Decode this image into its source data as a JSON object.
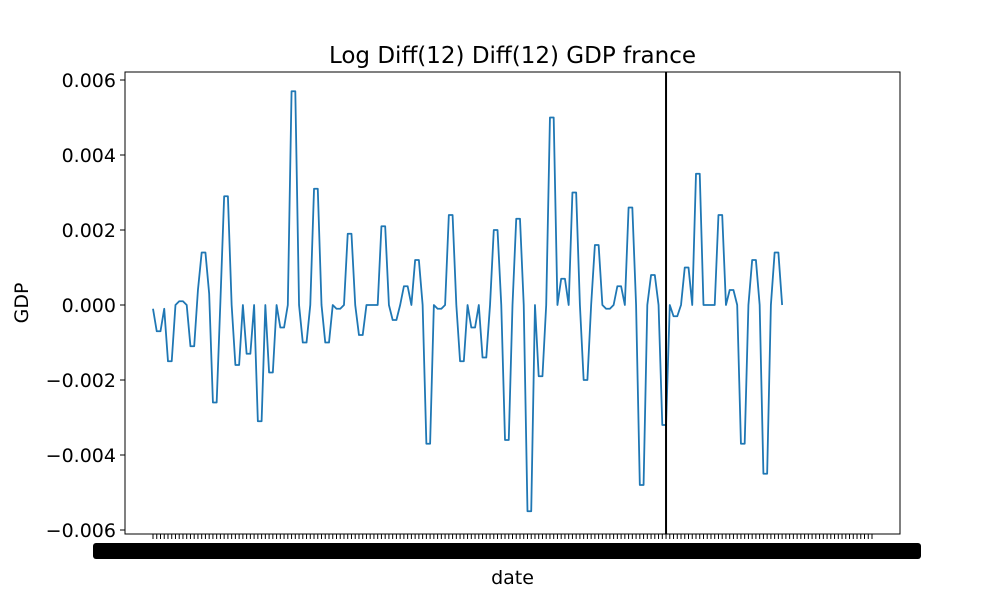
{
  "chart_data": {
    "type": "line",
    "title": "Log Diff(12) Diff(12) GDP france",
    "xlabel": "date",
    "ylabel": "GDP",
    "ylim": [
      -0.006,
      0.006
    ],
    "yticks": [
      {
        "value": -0.006,
        "label": "−0.006"
      },
      {
        "value": -0.004,
        "label": "−0.004"
      },
      {
        "value": -0.002,
        "label": "−0.002"
      },
      {
        "value": 0.0,
        "label": "0.000"
      },
      {
        "value": 0.002,
        "label": "0.002"
      },
      {
        "value": 0.004,
        "label": "0.004"
      },
      {
        "value": 0.006,
        "label": "0.006"
      }
    ],
    "x_index_range": [
      0,
      192
    ],
    "xtick_count": 193,
    "xtick_labels_note": "overlapping date labels rendered as an illegible dark band",
    "vertical_line_at_index": 137,
    "grid": false,
    "series": [
      {
        "color": "#1f77b4",
        "values": [
          -0.0001,
          -0.0007,
          -0.0007,
          -0.0001,
          -0.0015,
          -0.0015,
          0.0,
          0.0001,
          0.0001,
          0.0,
          -0.0011,
          -0.0011,
          0.0004,
          0.0014,
          0.0014,
          0.0003,
          -0.0026,
          -0.0026,
          0.0001,
          0.0029,
          0.0029,
          0.0,
          -0.0016,
          -0.0016,
          0.0,
          -0.0013,
          -0.0013,
          0.0,
          -0.0031,
          -0.0031,
          0.0,
          -0.0018,
          -0.0018,
          0.0,
          -0.0006,
          -0.0006,
          0.0,
          0.0057,
          0.0057,
          0.0,
          -0.001,
          -0.001,
          0.0,
          0.0031,
          0.0031,
          0.0,
          -0.001,
          -0.001,
          0.0,
          -0.0001,
          -0.0001,
          0.0,
          0.0019,
          0.0019,
          0.0,
          -0.0008,
          -0.0008,
          0.0,
          0.0,
          0.0,
          0.0,
          0.0021,
          0.0021,
          0.0,
          -0.0004,
          -0.0004,
          0.0,
          0.0005,
          0.0005,
          0.0,
          0.0012,
          0.0012,
          0.0,
          -0.0037,
          -0.0037,
          0.0,
          -0.0001,
          -0.0001,
          0.0,
          0.0024,
          0.0024,
          0.0,
          -0.0015,
          -0.0015,
          0.0,
          -0.0006,
          -0.0006,
          0.0,
          -0.0014,
          -0.0014,
          0.0,
          0.002,
          0.002,
          0.0,
          -0.0036,
          -0.0036,
          0.0,
          0.0023,
          0.0023,
          0.0,
          -0.0055,
          -0.0055,
          0.0,
          -0.0019,
          -0.0019,
          0.0,
          0.005,
          0.005,
          0.0,
          0.0007,
          0.0007,
          0.0,
          0.003,
          0.003,
          0.0,
          -0.002,
          -0.002,
          0.0,
          0.0016,
          0.0016,
          0.0,
          -0.0001,
          -0.0001,
          0.0,
          0.0005,
          0.0005,
          0.0,
          0.0026,
          0.0026,
          0.0,
          -0.0048,
          -0.0048,
          0.0,
          0.0008,
          0.0008,
          0.0,
          -0.0032,
          -0.0032,
          0.0,
          -0.0003,
          -0.0003,
          0.0,
          0.001,
          0.001,
          0.0,
          0.0035,
          0.0035,
          0.0,
          0.0,
          0.0,
          0.0,
          0.0024,
          0.0024,
          0.0,
          0.0004,
          0.0004,
          0.0,
          -0.0037,
          -0.0037,
          0.0,
          0.0012,
          0.0012,
          0.0,
          -0.0045,
          -0.0045,
          0.0,
          0.0014,
          0.0014,
          0.0
        ]
      }
    ]
  },
  "colors": {
    "line": "#1f77b4",
    "axes": "#000000",
    "background": "#ffffff"
  }
}
